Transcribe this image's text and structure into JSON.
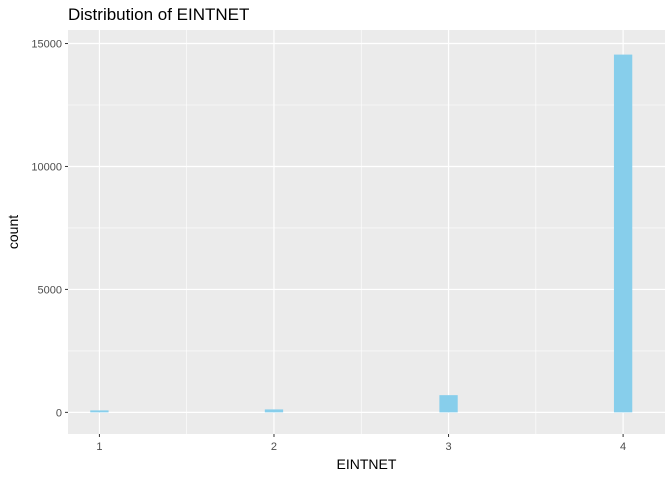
{
  "chart_data": {
    "type": "bar",
    "title": "Distribution of EINTNET",
    "xlabel": "EINTNET",
    "ylabel": "count",
    "x_ticks": [
      "1",
      "2",
      "3",
      "4"
    ],
    "y_ticks": [
      "0",
      "5000",
      "10000",
      "15000"
    ],
    "x_tick_values": [
      1,
      2,
      3,
      4
    ],
    "y_tick_values": [
      0,
      5000,
      10000,
      15000
    ],
    "xlim": [
      0.82,
      4.24
    ],
    "ylim": [
      -880,
      15550
    ],
    "bins": [
      {
        "x": 1,
        "value": 80
      },
      {
        "x": 2,
        "value": 120
      },
      {
        "x": 3,
        "value": 700
      },
      {
        "x": 4,
        "value": 14550
      }
    ],
    "grid": true,
    "panel_background": "#ebebeb",
    "grid_color": "#ffffff",
    "bar_color": "#87ceeb"
  }
}
